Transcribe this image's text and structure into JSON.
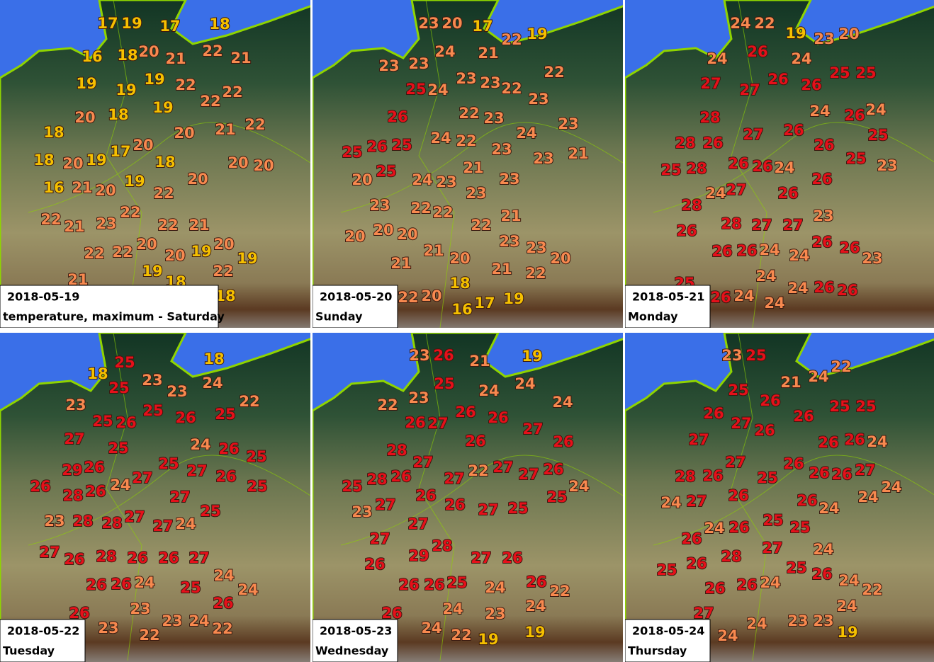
{
  "panels": [
    {
      "date": "2018-05-19",
      "caption": "temperature, maximum - Saturday",
      "temperatures": [
        17,
        19,
        17,
        18,
        16,
        18,
        20,
        21,
        22,
        21,
        19,
        19,
        19,
        22,
        22,
        22,
        20,
        18,
        19,
        20,
        21,
        22,
        18,
        17,
        20,
        18,
        20,
        19,
        18,
        20,
        20,
        16,
        21,
        20,
        19,
        22,
        20,
        22,
        22,
        21,
        23,
        22,
        21,
        20,
        19,
        20,
        22,
        22,
        20,
        19,
        21,
        19,
        18,
        22,
        18
      ]
    },
    {
      "date": "2018-05-20",
      "caption": "Sunday",
      "temperatures": [
        23,
        20,
        17,
        22,
        19,
        24,
        21,
        23,
        23,
        22,
        23,
        23,
        25,
        24,
        22,
        23,
        26,
        22,
        23,
        23,
        24,
        22,
        24,
        25,
        26,
        25,
        23,
        23,
        21,
        25,
        21,
        20,
        24,
        23,
        23,
        23,
        23,
        22,
        22,
        21,
        22,
        20,
        20,
        20,
        23,
        23,
        21,
        20,
        20,
        21,
        21,
        22,
        18,
        22,
        20,
        16,
        17,
        19
      ]
    },
    {
      "date": "2018-05-21",
      "caption": "Monday",
      "temperatures": [
        24,
        22,
        19,
        23,
        20,
        26,
        24,
        24,
        25,
        25,
        27,
        27,
        26,
        26,
        24,
        26,
        24,
        28,
        27,
        26,
        25,
        28,
        26,
        26,
        25,
        28,
        26,
        26,
        24,
        25,
        23,
        24,
        27,
        26,
        26,
        28,
        23,
        26,
        28,
        27,
        27,
        26,
        26,
        23,
        26,
        26,
        24,
        24,
        25,
        24,
        26,
        24,
        24,
        24,
        26,
        26
      ]
    },
    {
      "date": "2018-05-22",
      "caption": "Tuesday",
      "temperatures": [
        25,
        18,
        18,
        25,
        23,
        23,
        24,
        22,
        23,
        25,
        26,
        25,
        25,
        26,
        27,
        25,
        24,
        26,
        25,
        29,
        26,
        25,
        27,
        26,
        27,
        24,
        26,
        25,
        28,
        26,
        27,
        25,
        23,
        28,
        28,
        27,
        27,
        24,
        27,
        26,
        28,
        26,
        26,
        27,
        24,
        24,
        26,
        26,
        24,
        25,
        26,
        23,
        26,
        23,
        23,
        24,
        22,
        22
      ]
    },
    {
      "date": "2018-05-23",
      "caption": "Wednesday",
      "temperatures": [
        23,
        26,
        21,
        19,
        25,
        24,
        24,
        22,
        23,
        26,
        26,
        24,
        26,
        27,
        27,
        26,
        26,
        28,
        27,
        22,
        27,
        27,
        26,
        25,
        28,
        26,
        27,
        24,
        25,
        26,
        26,
        27,
        25,
        27,
        23,
        27,
        27,
        29,
        28,
        27,
        26,
        26,
        26,
        26,
        25,
        24,
        26,
        22,
        24,
        23,
        24,
        26,
        24,
        22,
        19,
        19
      ]
    },
    {
      "date": "2018-05-24",
      "caption": "Thursday",
      "temperatures": [
        23,
        25,
        21,
        24,
        22,
        25,
        26,
        25,
        25,
        26,
        27,
        26,
        26,
        26,
        26,
        24,
        27,
        27,
        26,
        26,
        26,
        27,
        25,
        24,
        28,
        26,
        26,
        26,
        24,
        24,
        24,
        27,
        24,
        26,
        25,
        25,
        26,
        27,
        24,
        28,
        25,
        26,
        25,
        26,
        24,
        22,
        26,
        26,
        24,
        24,
        27,
        24,
        23,
        23,
        19,
        24
      ]
    }
  ]
}
